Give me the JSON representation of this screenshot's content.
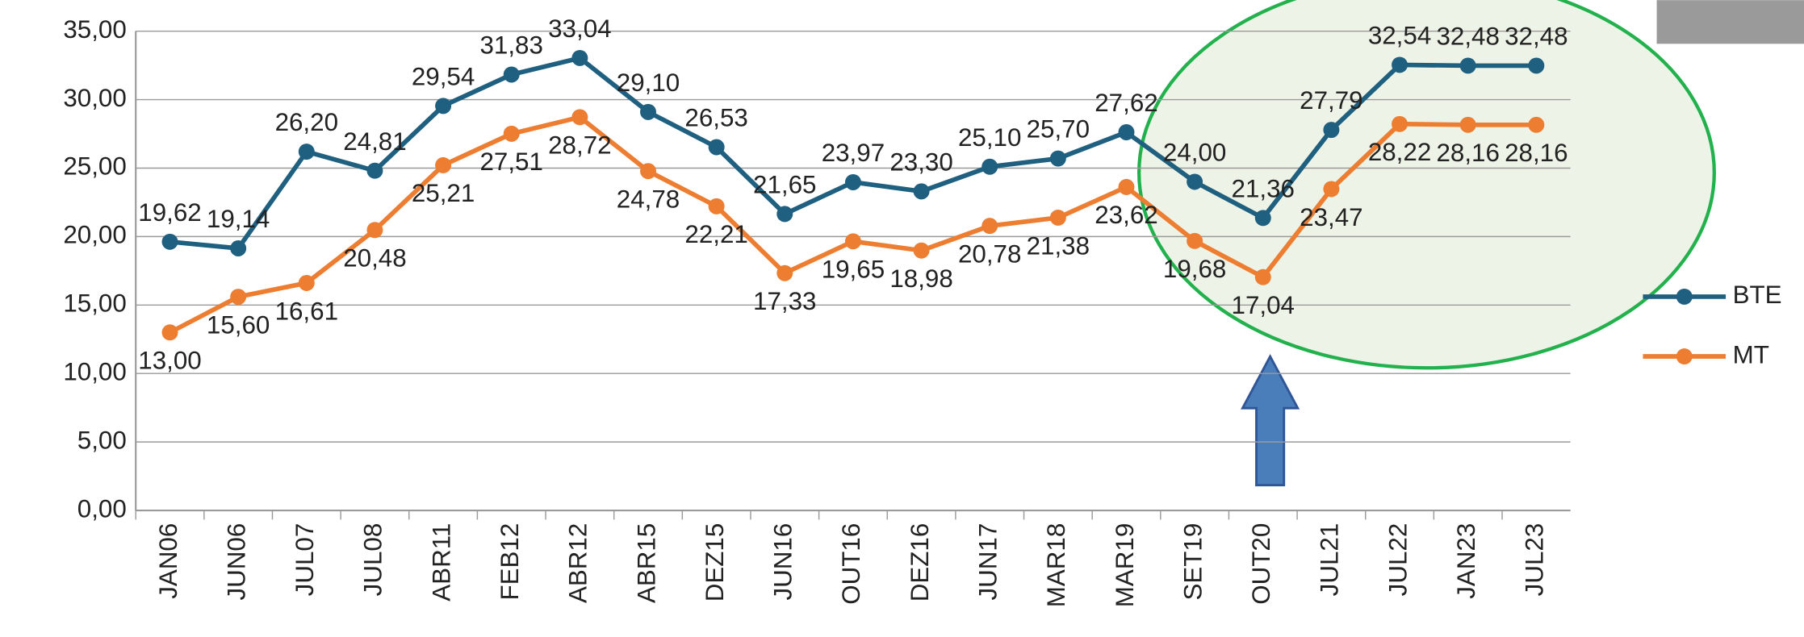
{
  "chart_data": {
    "type": "line",
    "categories": [
      "JAN06",
      "JUN06",
      "JUL07",
      "JUL08",
      "ABR11",
      "FEB12",
      "ABR12",
      "ABR15",
      "DEZ15",
      "JUN16",
      "OUT16",
      "DEZ16",
      "JUN17",
      "MAR18",
      "MAR19",
      "SET19",
      "OUT20",
      "JUL21",
      "JUL22",
      "JAN23",
      "JUL23"
    ],
    "series": [
      {
        "name": "BTE",
        "color": "#1f5f7f",
        "values": [
          19.62,
          19.14,
          26.2,
          24.81,
          29.54,
          31.83,
          33.04,
          29.1,
          26.53,
          21.65,
          23.97,
          23.3,
          25.1,
          25.7,
          27.62,
          24.0,
          21.36,
          27.79,
          32.54,
          32.48,
          32.48
        ],
        "value_labels": [
          "19,62",
          "19,14",
          "26,20",
          "24,81",
          "29,54",
          "31,83",
          "33,04",
          "29,10",
          "26,53",
          "21,65",
          "23,97",
          "23,30",
          "25,10",
          "25,70",
          "27,62",
          "24,00",
          "21,36",
          "27,79",
          "32,54",
          "32,48",
          "32,48"
        ]
      },
      {
        "name": "MT",
        "color": "#ed7d31",
        "values": [
          13.0,
          15.6,
          16.61,
          20.48,
          25.21,
          27.51,
          28.72,
          24.78,
          22.21,
          17.33,
          19.65,
          18.98,
          20.78,
          21.38,
          23.62,
          19.68,
          17.04,
          23.47,
          28.22,
          28.16,
          28.16
        ],
        "value_labels": [
          "13,00",
          "15,60",
          "16,61",
          "20,48",
          "25,21",
          "27,51",
          "28,72",
          "24,78",
          "22,21",
          "17,33",
          "19,65",
          "18,98",
          "20,78",
          "21,38",
          "23,62",
          "19,68",
          "17,04",
          "23,47",
          "28,22",
          "28,16",
          "28,16"
        ]
      }
    ],
    "ylim": [
      0,
      35
    ],
    "yticks": [
      {
        "value": 0,
        "label": "0,00"
      },
      {
        "value": 5,
        "label": "5,00"
      },
      {
        "value": 10,
        "label": "10,00"
      },
      {
        "value": 15,
        "label": "15,00"
      },
      {
        "value": 20,
        "label": "20,00"
      },
      {
        "value": 25,
        "label": "25,00"
      },
      {
        "value": 30,
        "label": "30,00"
      },
      {
        "value": 35,
        "label": "35,00"
      }
    ],
    "grid": true,
    "legend": "right"
  }
}
